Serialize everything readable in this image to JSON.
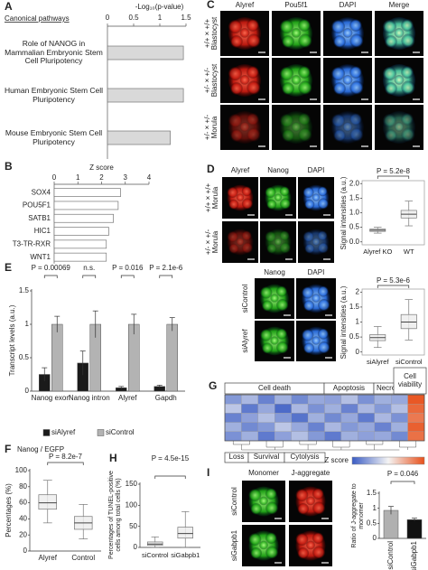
{
  "panel_labels": [
    "A",
    "B",
    "C",
    "D",
    "E",
    "F",
    "G",
    "H",
    "I"
  ],
  "image_panels": {
    "C": {
      "columns": [
        "Alyref",
        "Pou5f1",
        "DAPI",
        "Merge"
      ],
      "rows": [
        {
          "genotype": "+/+ × +/+",
          "stage": "Blastocyst"
        },
        {
          "genotype": "+/- × +/-",
          "stage": "Blastocyst"
        },
        {
          "genotype": "+/- × +/-",
          "stage": "Morula"
        }
      ]
    },
    "D": {
      "columns": [
        "Alyref",
        "Nanog",
        "DAPI"
      ],
      "rows": [
        {
          "genotype": "+/+ × +/+",
          "stage": "Morula"
        },
        {
          "genotype": "+/- × +/-",
          "stage": "Morula"
        }
      ]
    },
    "D2": {
      "columns": [
        "Nanog",
        "DAPI"
      ],
      "rows": [
        "siControl",
        "siAlyref"
      ]
    },
    "I": {
      "columns": [
        "Monomer",
        "J-aggregate"
      ],
      "rows": [
        "siControl",
        "siGabpb1"
      ]
    }
  },
  "chart_data": [
    {
      "type": "hbar",
      "title": "Canonical pathways",
      "xlabel": "-Log₁₀(p-value)",
      "categories": [
        "Role of NANOG in Mammalian Embryonic Stem Cell Pluripotency",
        "Human Embryonic Stem Cell Pluripotency",
        "Mouse Embryonic Stem Cell Pluripotency"
      ],
      "values": [
        1.45,
        1.45,
        1.2
      ],
      "color": "#d9d9d9",
      "xlim": [
        0,
        1.5
      ],
      "xticks": [
        0,
        0.5,
        1,
        1.5
      ]
    },
    {
      "type": "hbar",
      "xlabel": "Z score",
      "categories": [
        "SOX4",
        "POU5F1",
        "SATB1",
        "HIC1",
        "T3-TR-RXR",
        "WNT1"
      ],
      "values": [
        2.8,
        2.7,
        2.5,
        2.3,
        2.2,
        2.2
      ],
      "color": "#ffffff",
      "xlim": [
        0,
        4
      ],
      "xticks": [
        0,
        1,
        2,
        3,
        4
      ]
    },
    {
      "type": "box",
      "ylabel": "Signal intensities (a.u.)",
      "annotation": "P = 5.2e-8",
      "categories": [
        "Alyref KO",
        "WT"
      ],
      "boxes": [
        {
          "min": 0.3,
          "q1": 0.36,
          "median": 0.4,
          "q3": 0.44,
          "max": 0.5
        },
        {
          "min": 0.55,
          "q1": 0.82,
          "median": 0.95,
          "q3": 1.08,
          "max": 1.4
        }
      ],
      "ylim": [
        -0.1,
        2.1
      ],
      "yticks": [
        {
          "value": 0,
          "label": "0.0"
        },
        0.5,
        {
          "value": 1,
          "label": "1.0"
        },
        1.5,
        {
          "value": 2,
          "label": "2.0"
        }
      ]
    },
    {
      "type": "box",
      "ylabel": "Signal intensities (a.u.)",
      "annotation": "P = 5.3e-6",
      "categories": [
        "siAlyref",
        "siControl"
      ],
      "boxes": [
        {
          "min": 0.15,
          "q1": 0.38,
          "median": 0.48,
          "q3": 0.58,
          "max": 0.85
        },
        {
          "min": 0.4,
          "q1": 0.78,
          "median": 1.0,
          "q3": 1.25,
          "max": 1.75
        }
      ],
      "ylim": [
        -0.1,
        2.1
      ],
      "yticks": [
        0,
        0.5,
        1,
        1.5,
        2
      ]
    },
    {
      "type": "bar",
      "ylabel": "Transcript levels (a.u.)",
      "categories": [
        "Nanog exon",
        "Nanog intron",
        "Alyref",
        "Gapdh"
      ],
      "series": [
        {
          "name": "siAlyref",
          "color": "#1a1a1a",
          "values": [
            0.25,
            0.42,
            0.05,
            0.07
          ],
          "errors": [
            0.1,
            0.18,
            0.02,
            0.02
          ]
        },
        {
          "name": "siControl",
          "color": "#b3b3b3",
          "values": [
            1,
            1,
            1,
            1
          ],
          "errors": [
            0.12,
            0.2,
            0.15,
            0.1
          ]
        }
      ],
      "annotations": [
        "P = 0.00069",
        "n.s.",
        "P = 0.016",
        "P = 2.1e-6"
      ],
      "ylim": [
        0,
        1.5
      ],
      "yticks": [
        0,
        0.5,
        1,
        1.5
      ]
    },
    {
      "type": "heatmap",
      "legend_title": "Z score",
      "top_groups": [
        "Cell death",
        "Apoptosis",
        "Necrosis",
        "Cell viability"
      ],
      "bottom_groups": [
        "Loss",
        "Survival",
        "Cytolysis"
      ],
      "values": [
        [
          -1.2,
          -0.8,
          -1.5,
          -0.9,
          -1.4,
          -1.0,
          -1.1,
          -0.7,
          -1.3,
          -0.9,
          -1.0,
          1.9
        ],
        [
          -0.6,
          -1.6,
          -1.0,
          -1.8,
          -0.8,
          -1.3,
          -0.9,
          -1.5,
          -0.8,
          -1.2,
          -0.7,
          1.7
        ],
        [
          -1.5,
          -1.1,
          -0.7,
          -1.2,
          -1.7,
          -0.9,
          -1.4,
          -1.0,
          -1.6,
          -0.8,
          -1.3,
          1.5
        ],
        [
          -0.9,
          -1.4,
          -1.2,
          -0.6,
          -1.0,
          -1.5,
          -0.8,
          -1.2,
          -1.0,
          -1.5,
          -0.9,
          1.8
        ],
        [
          -1.3,
          -0.9,
          -1.6,
          -1.1,
          -0.7,
          -1.2,
          -1.6,
          -0.9,
          -1.1,
          -1.0,
          -1.4,
          1.6
        ]
      ],
      "zlim": [
        -2,
        2
      ],
      "colors": [
        "#3a5cc4",
        "#f4f4f4",
        "#e8501a"
      ]
    },
    {
      "type": "box",
      "title": "Nanog / EGFP",
      "ylabel": "Percentages (%)",
      "annotation": "P = 8.2e-7",
      "categories": [
        "Alyref",
        "Control"
      ],
      "boxes": [
        {
          "min": 35,
          "q1": 52,
          "median": 60,
          "q3": 70,
          "max": 88
        },
        {
          "min": 15,
          "q1": 27,
          "median": 35,
          "q3": 43,
          "max": 58
        }
      ],
      "ylim": [
        0,
        100
      ],
      "yticks": [
        0,
        20,
        40,
        60,
        80,
        100
      ]
    },
    {
      "type": "box",
      "ylabel": "Percentages of TUNEL-positive cells among total cells (%)",
      "annotation": "P = 4.5e-15",
      "categories": [
        "siControl",
        "siGabpb1"
      ],
      "boxes": [
        {
          "min": 0,
          "q1": 5,
          "median": 8,
          "q3": 13,
          "max": 25
        },
        {
          "min": 0,
          "q1": 22,
          "median": 33,
          "q3": 48,
          "max": 85
        }
      ],
      "ylim": [
        0,
        150
      ],
      "yticks": [
        0,
        50,
        100,
        150
      ]
    },
    {
      "type": "bar",
      "ylabel": "Ratio of J-aggregate to monomer",
      "annotation": "P = 0.046",
      "categories": [
        "siControl",
        "siGabpb1"
      ],
      "values": [
        0.93,
        0.62
      ],
      "errors": [
        0.13,
        0.05
      ],
      "colors": [
        "#b0b0b0",
        "#111111"
      ],
      "ylim": [
        0,
        1.5
      ],
      "yticks": [
        0,
        0.5,
        1,
        1.5
      ]
    }
  ]
}
